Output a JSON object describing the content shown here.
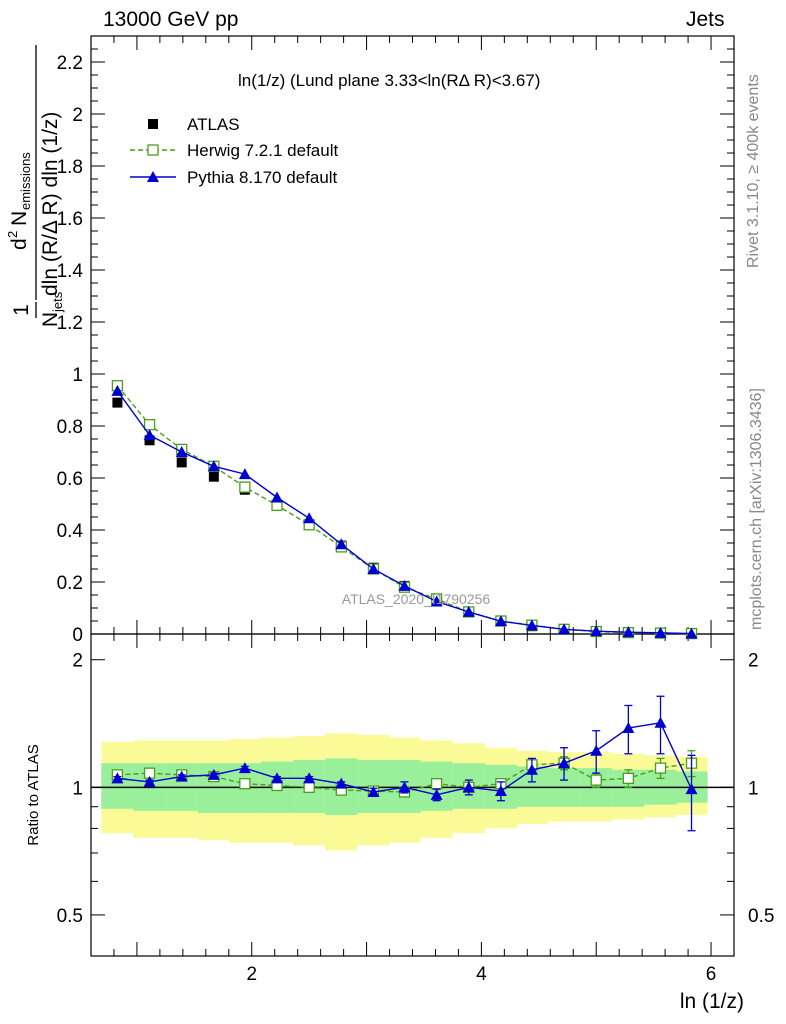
{
  "header": {
    "left": "13000 GeV pp",
    "right": "Jets"
  },
  "side_text": {
    "rivet": "Rivet 3.1.10, ≥ 400k events",
    "mcplots": "mcplots.cern.ch [arXiv:1306.3436]"
  },
  "watermark": "ATLAS_2020_I1790256",
  "chart_data": [
    {
      "type": "scatter",
      "title": "ln(1/z) (Lund plane 3.33<ln(RΔ R)<3.67)",
      "xlabel": "ln (1/z)",
      "ylabel": "1/N_jets d²N_emissions / dln(R/ΔR) dln(1/z)",
      "xlim": [
        0.6,
        6.2
      ],
      "ylim": [
        0,
        2.3
      ],
      "yticks": [
        0,
        0.2,
        0.4,
        0.6,
        0.8,
        1,
        1.2,
        1.4,
        1.6,
        1.8,
        2,
        2.2
      ],
      "ytick_labels": [
        "0",
        "0.2",
        "0.4",
        "0.6",
        "0.8",
        "1",
        "1.2",
        "1.4",
        "1.6",
        "1.8",
        "2",
        "2.2"
      ],
      "x": [
        0.83,
        1.11,
        1.39,
        1.67,
        1.94,
        2.22,
        2.5,
        2.78,
        3.06,
        3.33,
        3.61,
        3.89,
        4.17,
        4.44,
        4.72,
        5.0,
        5.28,
        5.56,
        5.83
      ],
      "series": [
        {
          "name": "ATLAS",
          "color": "#000000",
          "marker": "filled-square",
          "values": [
            0.89,
            0.745,
            0.66,
            0.605,
            0.555,
            0.495,
            0.42,
            0.34,
            0.255,
            0.185,
            0.13,
            0.085,
            0.05,
            0.03,
            0.016,
            0.009,
            0.005,
            0.003,
            0.0015
          ]
        },
        {
          "name": "Herwig 7.2.1 default",
          "color": "#4a9e1c",
          "marker": "open-square",
          "line": "dashed",
          "values": [
            0.955,
            0.805,
            0.71,
            0.645,
            0.565,
            0.495,
            0.42,
            0.335,
            0.25,
            0.18,
            0.135,
            0.085,
            0.05,
            0.034,
            0.018,
            0.0095,
            0.0053,
            0.0033,
            0.0017
          ]
        },
        {
          "name": "Pythia 8.170 default",
          "color": "#0000d0",
          "marker": "filled-triangle",
          "line": "solid",
          "values": [
            0.935,
            0.765,
            0.7,
            0.645,
            0.615,
            0.525,
            0.445,
            0.345,
            0.25,
            0.185,
            0.125,
            0.085,
            0.049,
            0.033,
            0.018,
            0.011,
            0.007,
            0.0043,
            0.0015
          ]
        }
      ]
    },
    {
      "type": "scatter",
      "ylabel": "Ratio to ATLAS",
      "xlabel": "ln (1/z)",
      "xlim": [
        0.6,
        6.2
      ],
      "ylim": [
        0.4,
        2.3
      ],
      "log_y": true,
      "yticks": [
        0.5,
        1,
        2
      ],
      "ytick_labels": [
        "0.5",
        "1",
        "2"
      ],
      "xticks": [
        2,
        4,
        6
      ],
      "xtick_labels": [
        "2",
        "4",
        "6"
      ],
      "x": [
        0.83,
        1.11,
        1.39,
        1.67,
        1.94,
        2.22,
        2.5,
        2.78,
        3.06,
        3.33,
        3.61,
        3.89,
        4.17,
        4.44,
        4.72,
        5.0,
        5.28,
        5.56,
        5.83
      ],
      "bands": {
        "green_color": "#9af09a",
        "yellow_color": "#fafa96",
        "green_low": [
          0.89,
          0.88,
          0.88,
          0.87,
          0.87,
          0.87,
          0.87,
          0.86,
          0.87,
          0.87,
          0.88,
          0.89,
          0.89,
          0.9,
          0.9,
          0.9,
          0.9,
          0.91,
          0.92
        ],
        "green_high": [
          1.14,
          1.14,
          1.14,
          1.14,
          1.14,
          1.15,
          1.16,
          1.17,
          1.16,
          1.16,
          1.15,
          1.14,
          1.13,
          1.12,
          1.11,
          1.11,
          1.1,
          1.1,
          1.09
        ],
        "yellow_low": [
          0.78,
          0.76,
          0.76,
          0.75,
          0.74,
          0.74,
          0.73,
          0.71,
          0.73,
          0.74,
          0.76,
          0.78,
          0.8,
          0.82,
          0.83,
          0.83,
          0.84,
          0.85,
          0.86
        ],
        "yellow_high": [
          1.28,
          1.29,
          1.29,
          1.29,
          1.3,
          1.31,
          1.32,
          1.34,
          1.33,
          1.31,
          1.29,
          1.27,
          1.24,
          1.22,
          1.21,
          1.21,
          1.2,
          1.19,
          1.18
        ]
      },
      "series": [
        {
          "name": "Herwig 7.2.1 default",
          "color": "#4a9e1c",
          "marker": "open-square",
          "line": "dashed",
          "values": [
            1.07,
            1.08,
            1.07,
            1.06,
            1.02,
            1.01,
            1.0,
            0.985,
            0.98,
            0.975,
            1.02,
            1.0,
            1.02,
            1.13,
            1.14,
            1.04,
            1.05,
            1.11,
            1.14
          ],
          "err": [
            0.01,
            0.01,
            0.01,
            0.01,
            0.01,
            0.01,
            0.01,
            0.01,
            0.01,
            0.01,
            0.01,
            0.02,
            0.02,
            0.03,
            0.04,
            0.04,
            0.05,
            0.06,
            0.08
          ]
        },
        {
          "name": "Pythia 8.170 default",
          "color": "#0000d0",
          "marker": "filled-triangle",
          "line": "solid",
          "values": [
            1.05,
            1.03,
            1.06,
            1.07,
            1.11,
            1.05,
            1.05,
            1.02,
            0.975,
            1.0,
            0.96,
            1.0,
            0.98,
            1.1,
            1.14,
            1.22,
            1.38,
            1.42,
            0.99
          ],
          "err": [
            0.01,
            0.01,
            0.01,
            0.01,
            0.01,
            0.01,
            0.01,
            0.01,
            0.02,
            0.03,
            0.03,
            0.04,
            0.05,
            0.07,
            0.1,
            0.14,
            0.18,
            0.22,
            0.2
          ]
        }
      ]
    }
  ]
}
